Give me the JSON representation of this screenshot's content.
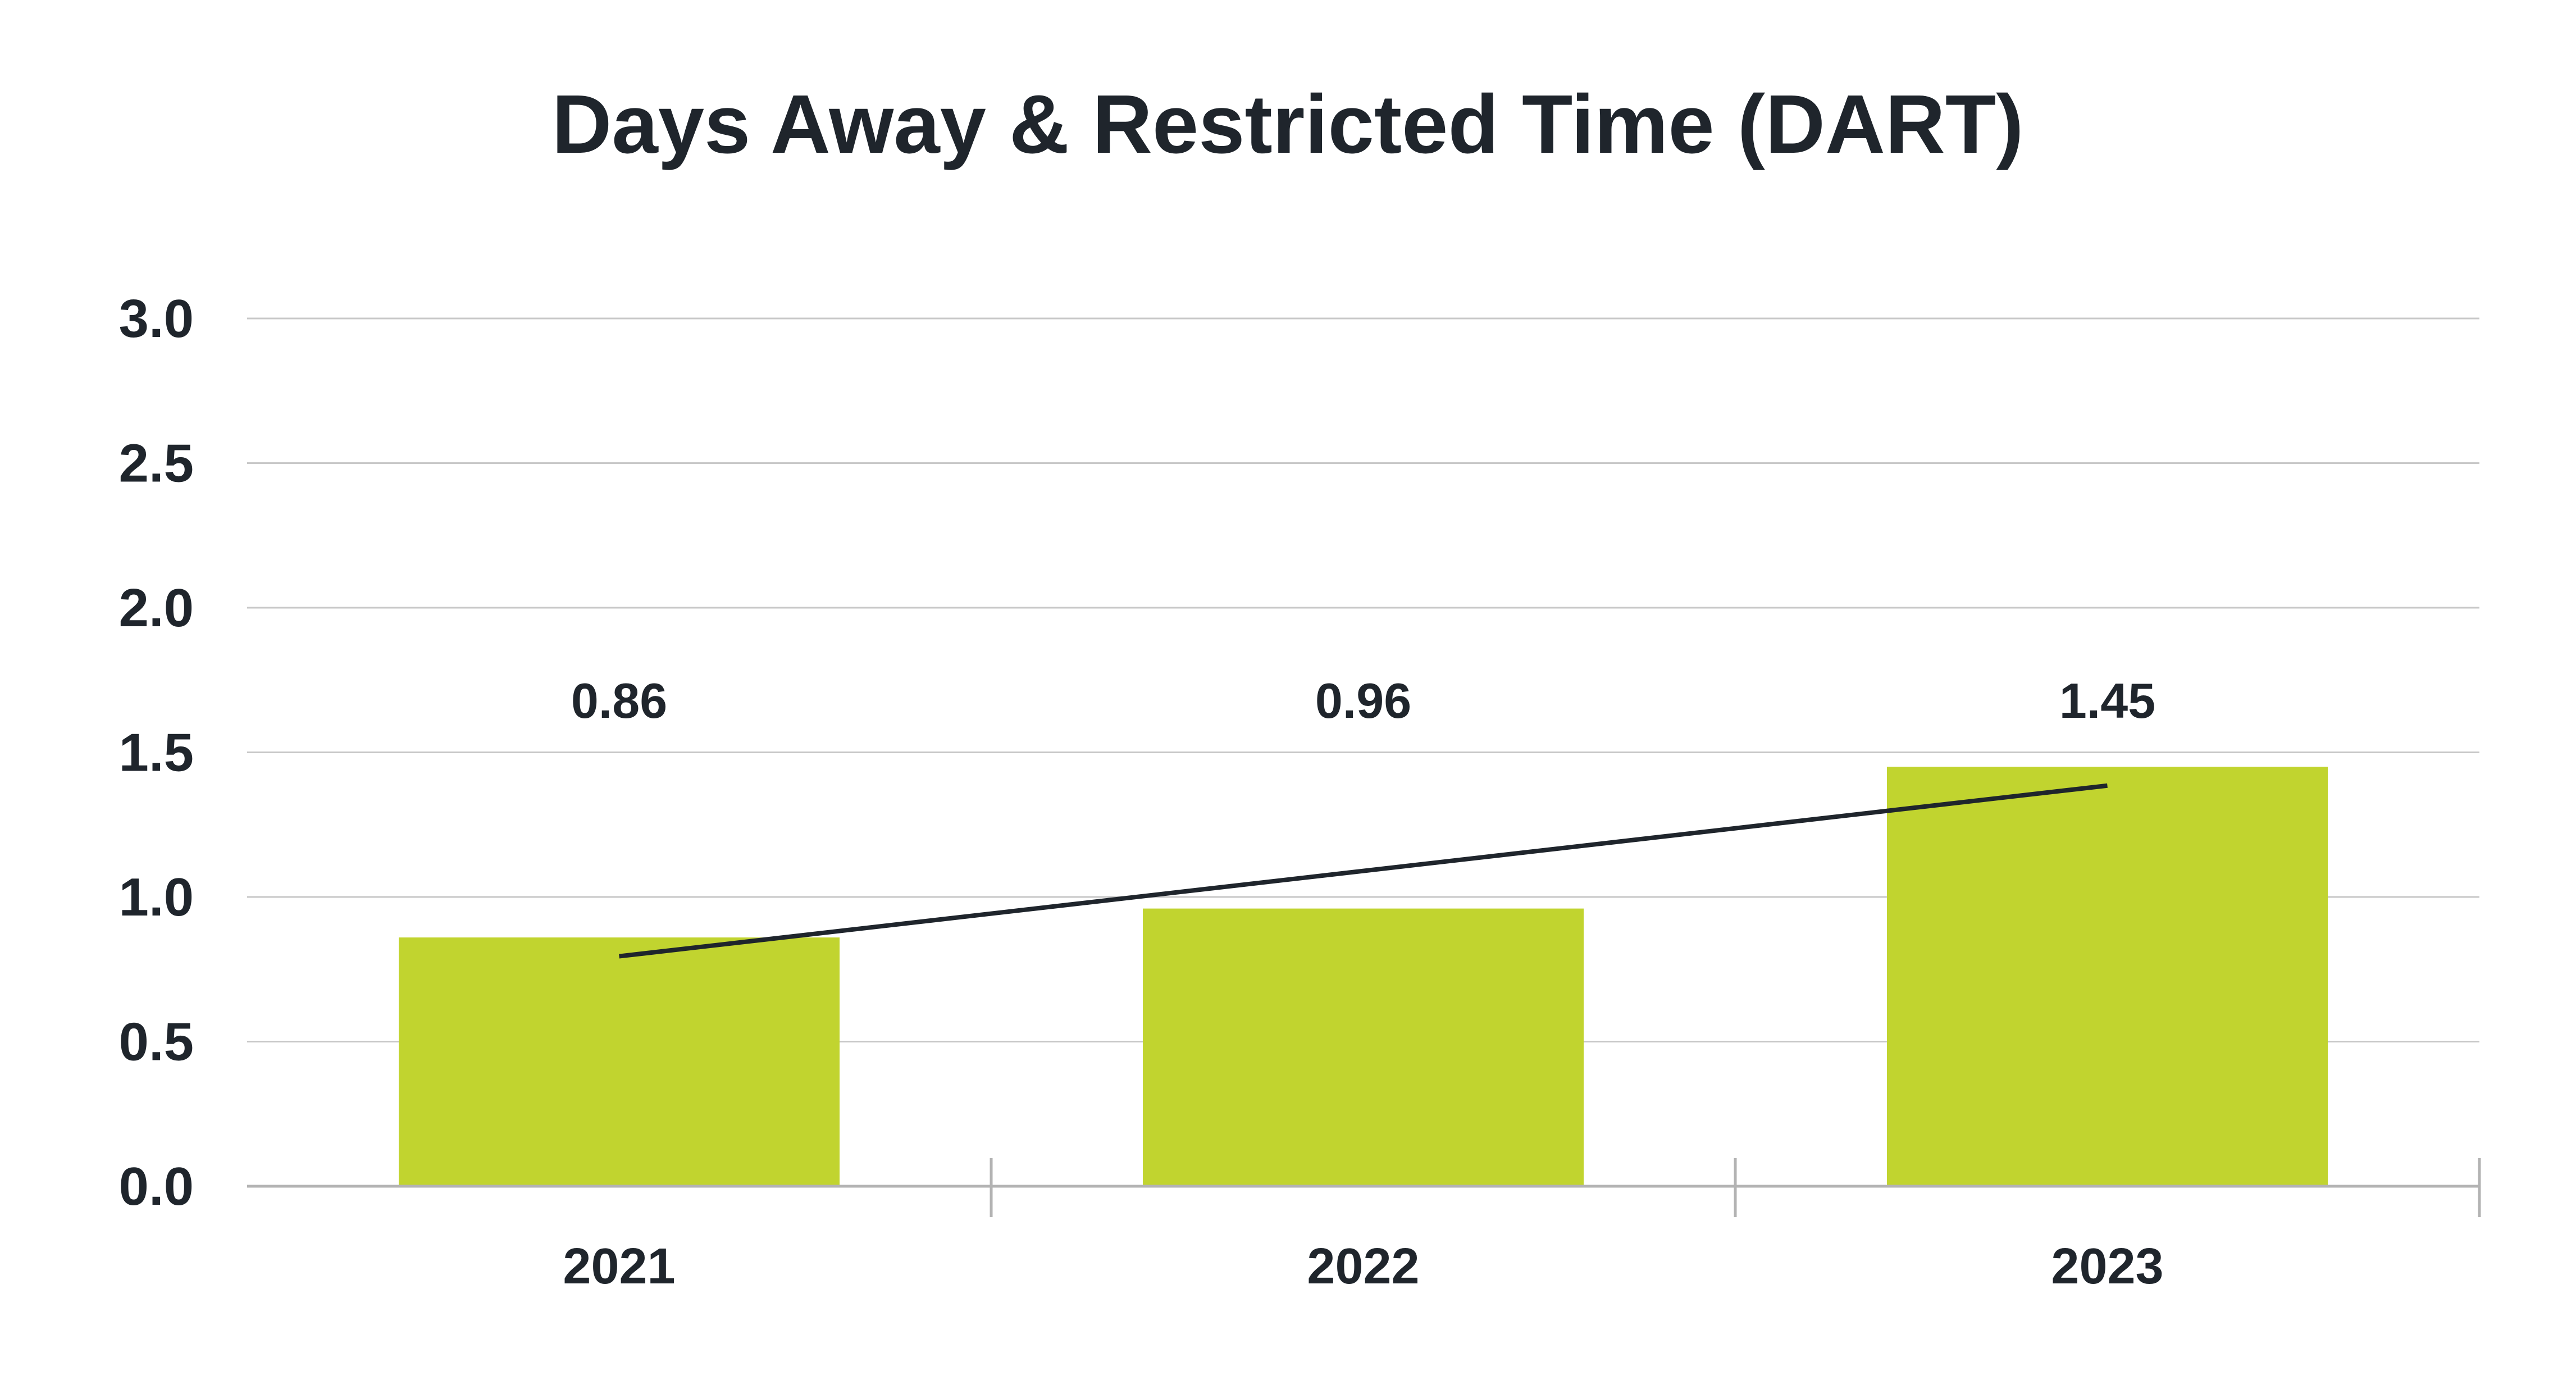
{
  "chart_data": {
    "type": "bar",
    "title": "Days Away & Restricted Time (DART)",
    "xlabel": "",
    "ylabel": "",
    "categories": [
      "2021",
      "2022",
      "2023"
    ],
    "series": [
      {
        "values": [
          0.86,
          0.96,
          1.45
        ],
        "data_labels": [
          "0.86",
          "0.96",
          "1.45"
        ],
        "color": "#c1d42f"
      }
    ],
    "trendline": {
      "type": "linear",
      "color": "#1f252c"
    },
    "ylim": [
      0,
      3.0
    ],
    "yticks": [
      0.0,
      0.5,
      1.0,
      1.5,
      2.0,
      2.5,
      3.0
    ],
    "ytick_labels": [
      "0.0",
      "0.5",
      "1.0",
      "1.5",
      "2.0",
      "2.5",
      "3.0"
    ],
    "grid": true,
    "legend": "none",
    "colors": {
      "bar": "#c1d42f",
      "text": "#1f252c",
      "grid": "#c8c8c8",
      "axis": "#b3b3b3"
    }
  }
}
